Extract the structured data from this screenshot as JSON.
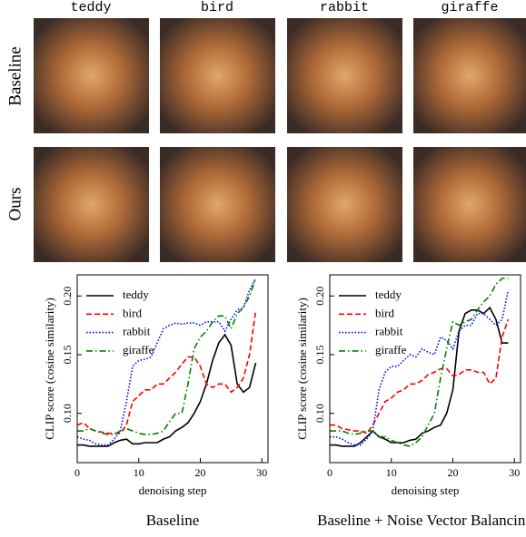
{
  "column_labels": [
    "teddy",
    "bird",
    "rabbit",
    "giraffe"
  ],
  "row_labels": [
    "Baseline",
    "Ours"
  ],
  "chart_data": [
    {
      "type": "line",
      "caption": "Baseline",
      "xlabel": "denoising step",
      "ylabel": "CLIP score (cosine similarity)",
      "xlim": [
        0,
        31
      ],
      "ylim": [
        0.058,
        0.218
      ],
      "xticks": [
        0,
        10,
        20,
        30
      ],
      "yticks": [
        {
          "value": 0.1,
          "label": "0.10"
        },
        {
          "value": 0.15,
          "label": "0.15"
        },
        {
          "value": 0.2,
          "label": "0.20"
        }
      ],
      "x": [
        0,
        1,
        2,
        3,
        4,
        5,
        6,
        7,
        8,
        9,
        10,
        11,
        12,
        13,
        14,
        15,
        16,
        17,
        18,
        19,
        20,
        21,
        22,
        23,
        24,
        25,
        26,
        27,
        28,
        29
      ],
      "series": [
        {
          "name": "teddy",
          "color": "#000000",
          "dash": "solid",
          "values": [
            0.073,
            0.073,
            0.072,
            0.072,
            0.072,
            0.072,
            0.075,
            0.077,
            0.078,
            0.074,
            0.074,
            0.075,
            0.075,
            0.075,
            0.078,
            0.08,
            0.085,
            0.088,
            0.092,
            0.1,
            0.11,
            0.125,
            0.145,
            0.16,
            0.167,
            0.158,
            0.125,
            0.118,
            0.122,
            0.143
          ]
        },
        {
          "name": "bird",
          "color": "#ff0000",
          "dash": "dashed",
          "values": [
            0.09,
            0.092,
            0.087,
            0.085,
            0.084,
            0.083,
            0.083,
            0.083,
            0.09,
            0.11,
            0.115,
            0.12,
            0.12,
            0.125,
            0.125,
            0.13,
            0.135,
            0.142,
            0.148,
            0.148,
            0.14,
            0.125,
            0.122,
            0.125,
            0.125,
            0.118,
            0.122,
            0.13,
            0.15,
            0.187
          ]
        },
        {
          "name": "rabbit",
          "color": "#0000ff",
          "dash": "dotted",
          "values": [
            0.08,
            0.078,
            0.077,
            0.074,
            0.073,
            0.073,
            0.078,
            0.085,
            0.11,
            0.14,
            0.145,
            0.146,
            0.148,
            0.16,
            0.172,
            0.175,
            0.177,
            0.176,
            0.177,
            0.177,
            0.175,
            0.178,
            0.178,
            0.178,
            0.17,
            0.18,
            0.188,
            0.19,
            0.205,
            0.215
          ]
        },
        {
          "name": "giraffe",
          "color": "#008000",
          "dash": "dashdot",
          "values": [
            0.085,
            0.085,
            0.087,
            0.085,
            0.083,
            0.082,
            0.082,
            0.085,
            0.087,
            0.085,
            0.083,
            0.082,
            0.082,
            0.083,
            0.085,
            0.093,
            0.1,
            0.1,
            0.125,
            0.155,
            0.165,
            0.17,
            0.178,
            0.183,
            0.183,
            0.172,
            0.185,
            0.19,
            0.2,
            0.215
          ]
        }
      ]
    },
    {
      "type": "line",
      "caption": "Baseline + Noise Vector Balancing",
      "xlabel": "denoising step",
      "ylabel": "CLIP score (cosine similarity)",
      "xlim": [
        0,
        31
      ],
      "ylim": [
        0.058,
        0.218
      ],
      "xticks": [
        0,
        10,
        20,
        30
      ],
      "yticks": [
        {
          "value": 0.1,
          "label": "0.10"
        },
        {
          "value": 0.15,
          "label": "0.15"
        },
        {
          "value": 0.2,
          "label": "0.20"
        }
      ],
      "x": [
        0,
        1,
        2,
        3,
        4,
        5,
        6,
        7,
        8,
        9,
        10,
        11,
        12,
        13,
        14,
        15,
        16,
        17,
        18,
        19,
        20,
        21,
        22,
        23,
        24,
        25,
        26,
        27,
        28,
        29
      ],
      "series": [
        {
          "name": "teddy",
          "color": "#000000",
          "dash": "solid",
          "values": [
            0.073,
            0.073,
            0.072,
            0.072,
            0.072,
            0.075,
            0.08,
            0.085,
            0.08,
            0.078,
            0.075,
            0.075,
            0.075,
            0.077,
            0.078,
            0.083,
            0.085,
            0.088,
            0.09,
            0.1,
            0.12,
            0.17,
            0.185,
            0.188,
            0.188,
            0.185,
            0.19,
            0.18,
            0.16,
            0.16
          ]
        },
        {
          "name": "bird",
          "color": "#ff0000",
          "dash": "dashed",
          "values": [
            0.09,
            0.09,
            0.087,
            0.086,
            0.085,
            0.085,
            0.083,
            0.09,
            0.1,
            0.11,
            0.113,
            0.118,
            0.12,
            0.125,
            0.125,
            0.128,
            0.133,
            0.135,
            0.138,
            0.138,
            0.132,
            0.133,
            0.137,
            0.137,
            0.135,
            0.135,
            0.125,
            0.13,
            0.165,
            0.18
          ]
        },
        {
          "name": "rabbit",
          "color": "#0000ff",
          "dash": "dotted",
          "values": [
            0.08,
            0.08,
            0.078,
            0.075,
            0.073,
            0.073,
            0.078,
            0.085,
            0.12,
            0.135,
            0.14,
            0.14,
            0.145,
            0.15,
            0.148,
            0.155,
            0.152,
            0.15,
            0.165,
            0.162,
            0.155,
            0.17,
            0.175,
            0.175,
            0.185,
            0.185,
            0.18,
            0.175,
            0.18,
            0.205
          ]
        },
        {
          "name": "giraffe",
          "color": "#008000",
          "dash": "dashdot",
          "values": [
            0.085,
            0.085,
            0.085,
            0.083,
            0.082,
            0.083,
            0.085,
            0.085,
            0.08,
            0.08,
            0.077,
            0.075,
            0.073,
            0.072,
            0.075,
            0.08,
            0.09,
            0.1,
            0.13,
            0.155,
            0.178,
            0.175,
            0.178,
            0.18,
            0.188,
            0.195,
            0.2,
            0.21,
            0.215,
            0.215
          ]
        }
      ]
    }
  ]
}
